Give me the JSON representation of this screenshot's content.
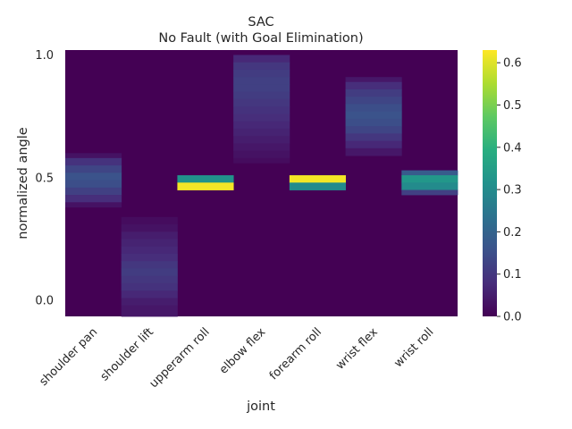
{
  "chart_data": {
    "type": "heatmap",
    "title": "SAC",
    "subtitle": "No Fault (with Goal Elimination)",
    "xlabel": "joint",
    "ylabel": "normalized angle",
    "categories": [
      "shoulder pan",
      "shoulder lift",
      "upperarm roll",
      "elbow flex",
      "forearm roll",
      "wrist flex",
      "wrist roll"
    ],
    "y_range": [
      -0.065,
      1.02
    ],
    "y_ticks": [
      "0.0",
      "0.5",
      "1.0"
    ],
    "y_tick_values": [
      0.0,
      0.5,
      1.0
    ],
    "colorbar": {
      "colormap": "viridis",
      "range": [
        0.0,
        0.63
      ],
      "ticks": [
        "0.0",
        "0.1",
        "0.2",
        "0.3",
        "0.4",
        "0.5",
        "0.6"
      ],
      "tick_values": [
        0.0,
        0.1,
        0.2,
        0.3,
        0.4,
        0.5,
        0.6
      ]
    },
    "background_value": 0.0,
    "series": [
      {
        "name": "shoulder pan",
        "bands": [
          {
            "lo": 0.58,
            "hi": 0.6,
            "v": 0.03
          },
          {
            "lo": 0.55,
            "hi": 0.58,
            "v": 0.09
          },
          {
            "lo": 0.52,
            "hi": 0.55,
            "v": 0.13
          },
          {
            "lo": 0.49,
            "hi": 0.52,
            "v": 0.16
          },
          {
            "lo": 0.46,
            "hi": 0.49,
            "v": 0.15
          },
          {
            "lo": 0.43,
            "hi": 0.46,
            "v": 0.12
          },
          {
            "lo": 0.4,
            "hi": 0.43,
            "v": 0.08
          },
          {
            "lo": 0.38,
            "hi": 0.4,
            "v": 0.03
          }
        ]
      },
      {
        "name": "shoulder lift",
        "bands": [
          {
            "lo": 0.31,
            "hi": 0.34,
            "v": 0.02
          },
          {
            "lo": 0.28,
            "hi": 0.31,
            "v": 0.03
          },
          {
            "lo": 0.25,
            "hi": 0.28,
            "v": 0.05
          },
          {
            "lo": 0.22,
            "hi": 0.25,
            "v": 0.06
          },
          {
            "lo": 0.19,
            "hi": 0.22,
            "v": 0.07
          },
          {
            "lo": 0.16,
            "hi": 0.19,
            "v": 0.08
          },
          {
            "lo": 0.13,
            "hi": 0.16,
            "v": 0.1
          },
          {
            "lo": 0.1,
            "hi": 0.13,
            "v": 0.11
          },
          {
            "lo": 0.07,
            "hi": 0.1,
            "v": 0.1
          },
          {
            "lo": 0.04,
            "hi": 0.07,
            "v": 0.09
          },
          {
            "lo": 0.01,
            "hi": 0.04,
            "v": 0.07
          },
          {
            "lo": -0.02,
            "hi": 0.01,
            "v": 0.05
          },
          {
            "lo": -0.065,
            "hi": -0.02,
            "v": 0.04
          }
        ]
      },
      {
        "name": "upperarm roll",
        "bands": [
          {
            "lo": 0.48,
            "hi": 0.51,
            "v": 0.32
          },
          {
            "lo": 0.45,
            "hi": 0.48,
            "v": 0.62
          }
        ]
      },
      {
        "name": "elbow flex",
        "bands": [
          {
            "lo": 0.97,
            "hi": 1.0,
            "v": 0.07
          },
          {
            "lo": 0.94,
            "hi": 0.97,
            "v": 0.1
          },
          {
            "lo": 0.91,
            "hi": 0.94,
            "v": 0.11
          },
          {
            "lo": 0.88,
            "hi": 0.91,
            "v": 0.12
          },
          {
            "lo": 0.85,
            "hi": 0.88,
            "v": 0.12
          },
          {
            "lo": 0.82,
            "hi": 0.85,
            "v": 0.11
          },
          {
            "lo": 0.79,
            "hi": 0.82,
            "v": 0.1
          },
          {
            "lo": 0.76,
            "hi": 0.79,
            "v": 0.09
          },
          {
            "lo": 0.73,
            "hi": 0.76,
            "v": 0.08
          },
          {
            "lo": 0.7,
            "hi": 0.73,
            "v": 0.07
          },
          {
            "lo": 0.67,
            "hi": 0.7,
            "v": 0.06
          },
          {
            "lo": 0.64,
            "hi": 0.67,
            "v": 0.05
          },
          {
            "lo": 0.61,
            "hi": 0.64,
            "v": 0.04
          },
          {
            "lo": 0.58,
            "hi": 0.61,
            "v": 0.03
          },
          {
            "lo": 0.56,
            "hi": 0.58,
            "v": 0.02
          }
        ]
      },
      {
        "name": "forearm roll",
        "bands": [
          {
            "lo": 0.48,
            "hi": 0.51,
            "v": 0.62
          },
          {
            "lo": 0.45,
            "hi": 0.48,
            "v": 0.3
          }
        ]
      },
      {
        "name": "wrist flex",
        "bands": [
          {
            "lo": 0.89,
            "hi": 0.91,
            "v": 0.04
          },
          {
            "lo": 0.86,
            "hi": 0.89,
            "v": 0.08
          },
          {
            "lo": 0.83,
            "hi": 0.86,
            "v": 0.11
          },
          {
            "lo": 0.8,
            "hi": 0.83,
            "v": 0.13
          },
          {
            "lo": 0.77,
            "hi": 0.8,
            "v": 0.15
          },
          {
            "lo": 0.74,
            "hi": 0.77,
            "v": 0.16
          },
          {
            "lo": 0.71,
            "hi": 0.74,
            "v": 0.15
          },
          {
            "lo": 0.68,
            "hi": 0.71,
            "v": 0.13
          },
          {
            "lo": 0.65,
            "hi": 0.68,
            "v": 0.1
          },
          {
            "lo": 0.62,
            "hi": 0.65,
            "v": 0.07
          },
          {
            "lo": 0.59,
            "hi": 0.62,
            "v": 0.04
          }
        ]
      },
      {
        "name": "wrist roll",
        "bands": [
          {
            "lo": 0.51,
            "hi": 0.53,
            "v": 0.18
          },
          {
            "lo": 0.48,
            "hi": 0.51,
            "v": 0.33
          },
          {
            "lo": 0.45,
            "hi": 0.48,
            "v": 0.3
          },
          {
            "lo": 0.43,
            "hi": 0.45,
            "v": 0.12
          }
        ]
      }
    ]
  }
}
